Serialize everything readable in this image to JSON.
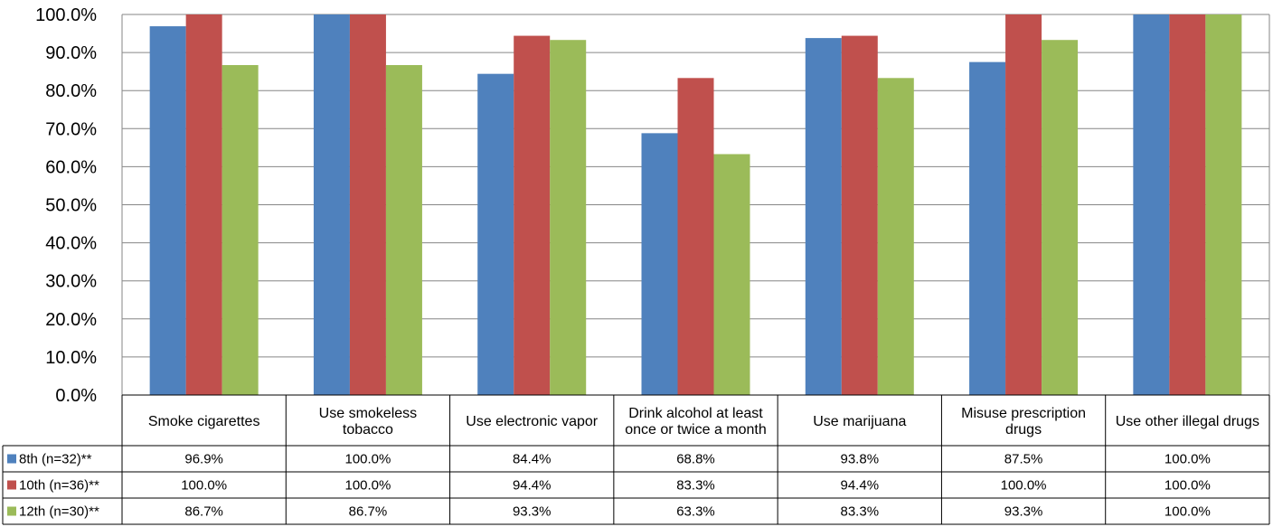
{
  "chart_data": {
    "type": "bar",
    "title": "",
    "xlabel": "",
    "ylabel": "",
    "ylim": [
      0,
      100
    ],
    "y_tick_step": 10,
    "y_tick_format": "percent_1dp",
    "grid": true,
    "legend": "data-table-left",
    "categories": [
      [
        "Smoke cigarettes"
      ],
      [
        "Use smokeless",
        "tobacco"
      ],
      [
        "Use electronic vapor"
      ],
      [
        "Drink alcohol at least",
        "once or twice a month"
      ],
      [
        "Use marijuana"
      ],
      [
        "Misuse prescription",
        "drugs"
      ],
      [
        "Use other illegal drugs"
      ]
    ],
    "series": [
      {
        "name": "8th (n=32)**",
        "color": "#4F81BD",
        "values": [
          96.9,
          100.0,
          84.4,
          68.8,
          93.8,
          87.5,
          100.0
        ],
        "labels": [
          "96.9%",
          "100.0%",
          "84.4%",
          "68.8%",
          "93.8%",
          "87.5%",
          "100.0%"
        ]
      },
      {
        "name": "10th (n=36)**",
        "color": "#C0504D",
        "values": [
          100.0,
          100.0,
          94.4,
          83.3,
          94.4,
          100.0,
          100.0
        ],
        "labels": [
          "100.0%",
          "100.0%",
          "94.4%",
          "83.3%",
          "94.4%",
          "100.0%",
          "100.0%"
        ]
      },
      {
        "name": "12th (n=30)**",
        "color": "#9BBB59",
        "values": [
          86.7,
          86.7,
          93.3,
          63.3,
          83.3,
          93.3,
          100.0
        ],
        "labels": [
          "86.7%",
          "86.7%",
          "93.3%",
          "63.3%",
          "83.3%",
          "93.3%",
          "100.0%"
        ]
      }
    ]
  }
}
